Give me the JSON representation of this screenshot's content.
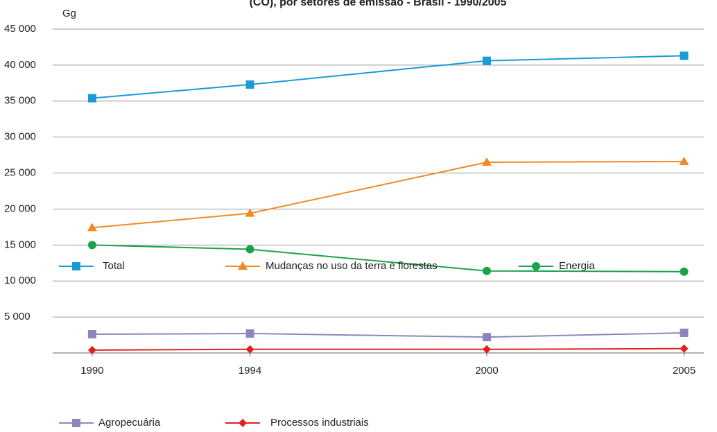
{
  "chart_data": {
    "type": "line",
    "title": "(CO), por setores de emissão - Brasil - 1990/2005",
    "y_label": "Gg",
    "x": [
      1990,
      1994,
      2000,
      2005
    ],
    "xlim": [
      1989,
      2005.5
    ],
    "xticks": [
      1990,
      1994,
      2000,
      2005
    ],
    "ylim": [
      0,
      45000
    ],
    "yticks": [
      {
        "value": 5000,
        "label": "5 000"
      },
      {
        "value": 10000,
        "label": "10 000"
      },
      {
        "value": 15000,
        "label": "15 000"
      },
      {
        "value": 20000,
        "label": "20 000"
      },
      {
        "value": 25000,
        "label": "25 000"
      },
      {
        "value": 30000,
        "label": "30 000"
      },
      {
        "value": 35000,
        "label": "35 000"
      },
      {
        "value": 40000,
        "label": "40 000"
      },
      {
        "value": 45000,
        "label": "45 000"
      }
    ],
    "grid": true,
    "legend": "bottom",
    "series": [
      {
        "name": "Total",
        "color": "#1a9ad6",
        "marker": "square",
        "values": [
          35400,
          37300,
          40600,
          41300
        ]
      },
      {
        "name": "Mudanças no uso da terra e florestas",
        "color": "#f08a24",
        "marker": "triangle",
        "values": [
          17400,
          19400,
          26500,
          26600
        ]
      },
      {
        "name": "Energia",
        "color": "#1aa34a",
        "marker": "circle",
        "values": [
          15000,
          14400,
          11400,
          11300
        ]
      },
      {
        "name": "Agropecuária",
        "color": "#8e85c0",
        "marker": "square",
        "values": [
          2600,
          2700,
          2200,
          2800
        ]
      },
      {
        "name": "Processos industriais",
        "color": "#e0201b",
        "marker": "diamond",
        "values": [
          400,
          500,
          500,
          600
        ]
      }
    ]
  }
}
